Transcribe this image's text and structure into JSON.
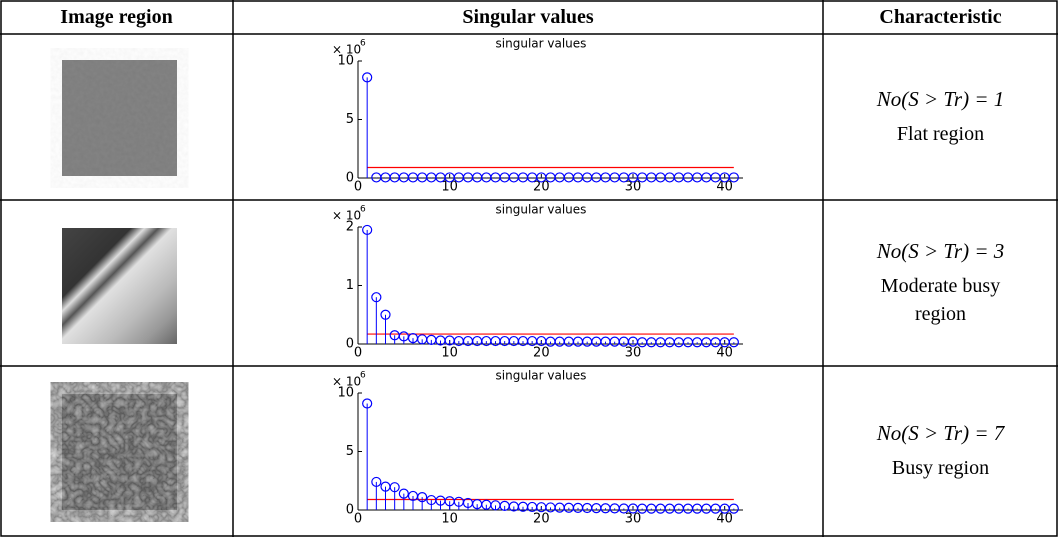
{
  "table": {
    "header": [
      "Image region",
      "Singular values",
      "Characteristic"
    ],
    "rows": [
      {
        "formula": "No(S > Tr) = 1",
        "label": "Flat region"
      },
      {
        "formula": "No(S > Tr) = 3",
        "label": "Moderate busy region"
      },
      {
        "formula": "No(S > Tr) = 7",
        "label": "Busy region"
      }
    ]
  },
  "chart_data": [
    {
      "type": "stem",
      "title": "singular values",
      "scale_base": "× 10",
      "scale_power": "6",
      "color": "#0000ff",
      "threshold": 0.9,
      "threshold_color": "#ff0000",
      "x": [
        1,
        2,
        3,
        4,
        5,
        6,
        7,
        8,
        9,
        10,
        11,
        12,
        13,
        14,
        15,
        16,
        17,
        18,
        19,
        20,
        21,
        22,
        23,
        24,
        25,
        26,
        27,
        28,
        29,
        30,
        31,
        32,
        33,
        34,
        35,
        36,
        37,
        38,
        39,
        40,
        41
      ],
      "values": [
        8.6,
        0.05,
        0.05,
        0.05,
        0.05,
        0.05,
        0.05,
        0.05,
        0.05,
        0.05,
        0.05,
        0.05,
        0.05,
        0.05,
        0.05,
        0.05,
        0.05,
        0.05,
        0.05,
        0.05,
        0.05,
        0.05,
        0.05,
        0.05,
        0.05,
        0.05,
        0.05,
        0.05,
        0.05,
        0.05,
        0.05,
        0.05,
        0.05,
        0.05,
        0.05,
        0.05,
        0.05,
        0.05,
        0.05,
        0.05,
        0.05
      ],
      "xlim": [
        0,
        42
      ],
      "xticks": [
        0,
        10,
        20,
        30,
        40
      ],
      "ylim": [
        0,
        10
      ],
      "yticks": [
        0,
        5,
        10
      ]
    },
    {
      "type": "stem",
      "title": "singular values",
      "scale_base": "× 10",
      "scale_power": "6",
      "color": "#0000ff",
      "threshold": 0.17,
      "threshold_color": "#ff0000",
      "x": [
        1,
        2,
        3,
        4,
        5,
        6,
        7,
        8,
        9,
        10,
        11,
        12,
        13,
        14,
        15,
        16,
        17,
        18,
        19,
        20,
        21,
        22,
        23,
        24,
        25,
        26,
        27,
        28,
        29,
        30,
        31,
        32,
        33,
        34,
        35,
        36,
        37,
        38,
        39,
        40,
        41
      ],
      "values": [
        1.95,
        0.8,
        0.5,
        0.15,
        0.13,
        0.1,
        0.08,
        0.07,
        0.06,
        0.06,
        0.05,
        0.05,
        0.05,
        0.05,
        0.05,
        0.05,
        0.05,
        0.05,
        0.05,
        0.05,
        0.04,
        0.04,
        0.04,
        0.04,
        0.04,
        0.04,
        0.04,
        0.04,
        0.04,
        0.04,
        0.03,
        0.03,
        0.03,
        0.03,
        0.03,
        0.03,
        0.03,
        0.03,
        0.03,
        0.03,
        0.03
      ],
      "xlim": [
        0,
        42
      ],
      "xticks": [
        0,
        10,
        20,
        30,
        40
      ],
      "ylim": [
        0,
        2
      ],
      "yticks": [
        0,
        1,
        2
      ]
    },
    {
      "type": "stem",
      "title": "singular values",
      "scale_base": "× 10",
      "scale_power": "6",
      "color": "#0000ff",
      "threshold": 0.9,
      "threshold_color": "#ff0000",
      "x": [
        1,
        2,
        3,
        4,
        5,
        6,
        7,
        8,
        9,
        10,
        11,
        12,
        13,
        14,
        15,
        16,
        17,
        18,
        19,
        20,
        21,
        22,
        23,
        24,
        25,
        26,
        27,
        28,
        29,
        30,
        31,
        32,
        33,
        34,
        35,
        36,
        37,
        38,
        39,
        40,
        41
      ],
      "values": [
        9.1,
        2.4,
        2.0,
        1.95,
        1.4,
        1.2,
        1.1,
        0.85,
        0.8,
        0.75,
        0.7,
        0.6,
        0.5,
        0.45,
        0.4,
        0.35,
        0.3,
        0.28,
        0.26,
        0.24,
        0.22,
        0.2,
        0.19,
        0.18,
        0.17,
        0.16,
        0.15,
        0.14,
        0.13,
        0.13,
        0.12,
        0.12,
        0.12,
        0.12,
        0.12,
        0.12,
        0.12,
        0.12,
        0.12,
        0.12,
        0.12
      ],
      "xlim": [
        0,
        42
      ],
      "xticks": [
        0,
        10,
        20,
        30,
        40
      ],
      "ylim": [
        0,
        10
      ],
      "yticks": [
        0,
        5,
        10
      ]
    }
  ]
}
